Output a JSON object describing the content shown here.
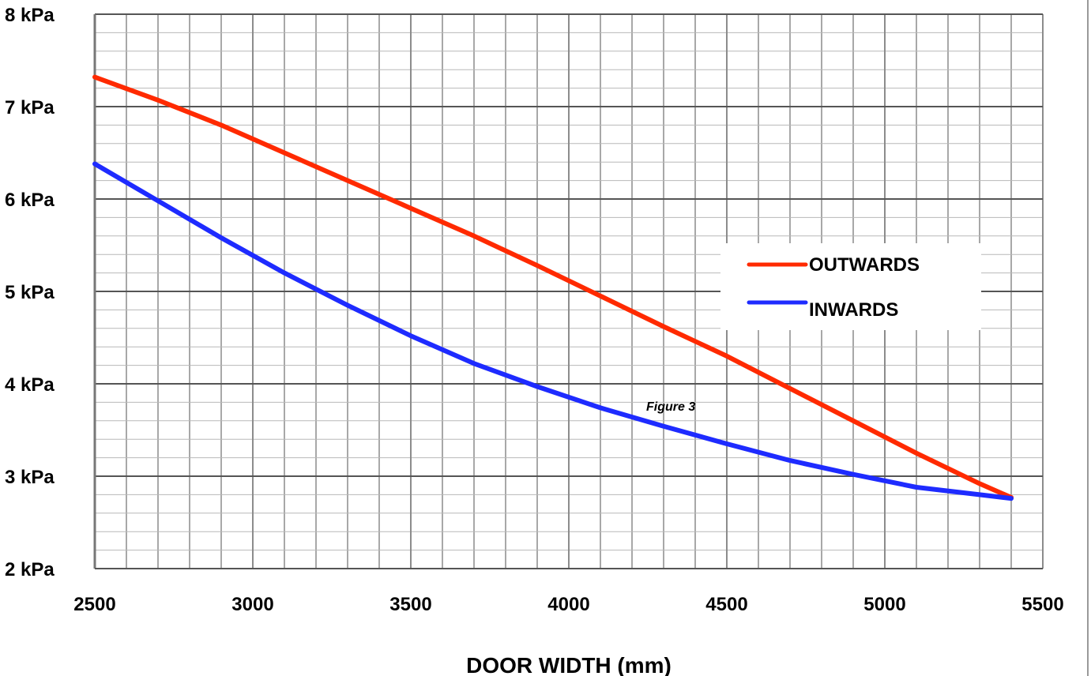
{
  "chart_data": {
    "type": "line",
    "xlabel": "DOOR WIDTH (mm)",
    "ylabel": "",
    "xlim": [
      2500,
      5500
    ],
    "ylim": [
      2,
      8
    ],
    "x_ticks": [
      2500,
      3000,
      3500,
      4000,
      4500,
      5000,
      5500
    ],
    "y_ticks": [
      2,
      3,
      4,
      5,
      6,
      7,
      8
    ],
    "y_tick_labels": [
      "2 kPa",
      "3 kPa",
      "4 kPa",
      "5 kPa",
      "6 kPa",
      "7 kPa",
      "8 kPa"
    ],
    "grid": true,
    "legend_position": "right",
    "annotation": "Figure 3",
    "series": [
      {
        "name": "OUTWARDS",
        "color": "#ff2a00",
        "x": [
          2500,
          2700,
          2900,
          3100,
          3300,
          3500,
          3700,
          3900,
          4100,
          4300,
          4500,
          4700,
          4900,
          5100,
          5300,
          5400
        ],
        "y": [
          7.32,
          7.07,
          6.8,
          6.5,
          6.2,
          5.9,
          5.6,
          5.28,
          4.95,
          4.62,
          4.3,
          3.95,
          3.6,
          3.25,
          2.92,
          2.77
        ]
      },
      {
        "name": "INWARDS",
        "color": "#1e2bff",
        "x": [
          2500,
          2700,
          2900,
          3100,
          3300,
          3500,
          3700,
          3900,
          4100,
          4300,
          4500,
          4700,
          4900,
          5100,
          5300,
          5400
        ],
        "y": [
          6.38,
          5.98,
          5.58,
          5.2,
          4.85,
          4.52,
          4.22,
          3.97,
          3.74,
          3.54,
          3.35,
          3.17,
          3.02,
          2.88,
          2.8,
          2.76
        ]
      }
    ]
  }
}
